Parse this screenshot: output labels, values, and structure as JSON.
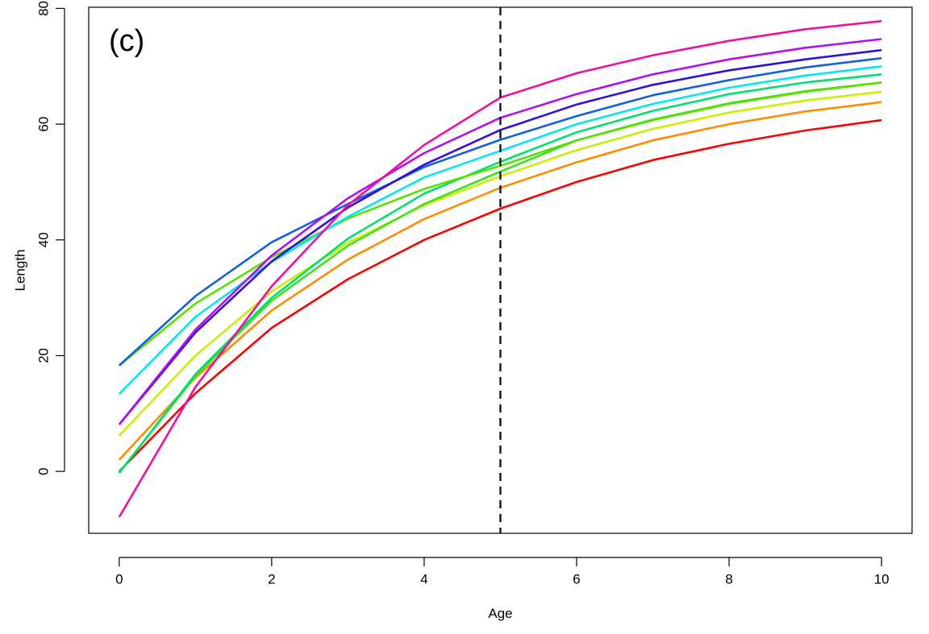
{
  "chart_data": {
    "type": "line",
    "title": "",
    "panel_label": "(c)",
    "xlabel": "Age",
    "ylabel": "Length",
    "xlim": [
      -0.4,
      10.4
    ],
    "ylim": [
      -10.7,
      80.2
    ],
    "x_ticks": [
      0,
      2,
      4,
      6,
      8,
      10
    ],
    "y_ticks": [
      0,
      20,
      40,
      60,
      80
    ],
    "grid": false,
    "legend": "none",
    "reference_line": {
      "x": 5,
      "style": "dashed",
      "color": "#000000"
    },
    "x": [
      0,
      1,
      2,
      3,
      4,
      5,
      6,
      7,
      8,
      9,
      10
    ],
    "series": [
      {
        "color": "#ff0000",
        "values": [
          0.0,
          13.5,
          24.8,
          33.2,
          40.0,
          45.4,
          50.0,
          53.8,
          56.6,
          58.9,
          60.7
        ]
      },
      {
        "color": "#ff8c00",
        "values": [
          2.0,
          16.2,
          27.8,
          36.6,
          43.6,
          49.0,
          53.4,
          57.2,
          60.0,
          62.2,
          63.8
        ]
      },
      {
        "color": "#c8f000",
        "values": [
          6.2,
          20.0,
          31.1,
          39.5,
          46.0,
          51.0,
          55.5,
          59.2,
          62.0,
          64.1,
          65.6
        ]
      },
      {
        "color": "#40e020",
        "values": [
          -0.2,
          16.5,
          29.5,
          39.0,
          46.2,
          51.8,
          57.2,
          60.8,
          63.6,
          65.7,
          67.2
        ]
      },
      {
        "color": "#00e070",
        "values": [
          -0.3,
          16.8,
          30.0,
          40.2,
          48.0,
          53.5,
          58.6,
          62.3,
          65.2,
          67.2,
          68.6
        ]
      },
      {
        "color": "#58e000",
        "values": [
          18.3,
          29.0,
          37.0,
          43.7,
          48.8,
          52.8,
          57.2,
          60.7,
          63.5,
          65.6,
          67.2
        ]
      },
      {
        "color": "#00e8f0",
        "values": [
          13.4,
          26.7,
          36.2,
          44.0,
          50.8,
          55.4,
          60.0,
          63.5,
          66.3,
          68.4,
          70.0
        ]
      },
      {
        "color": "#1060e0",
        "values": [
          18.3,
          30.3,
          39.6,
          46.2,
          52.6,
          57.3,
          61.4,
          65.0,
          67.6,
          69.8,
          71.4
        ]
      },
      {
        "color": "#3010e0",
        "values": [
          8.1,
          24.0,
          36.3,
          45.6,
          53.0,
          59.0,
          63.4,
          66.8,
          69.3,
          71.2,
          72.8
        ]
      },
      {
        "color": "#b010f0",
        "values": [
          8.1,
          24.5,
          37.3,
          47.2,
          55.0,
          61.1,
          65.2,
          68.6,
          71.2,
          73.2,
          74.7
        ]
      },
      {
        "color": "#f010a0",
        "values": [
          -7.9,
          14.6,
          32.0,
          46.0,
          56.4,
          64.6,
          68.8,
          71.9,
          74.4,
          76.4,
          77.8
        ]
      }
    ]
  }
}
